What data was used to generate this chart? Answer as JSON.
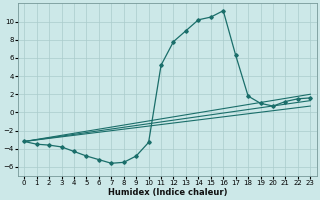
{
  "xlabel": "Humidex (Indice chaleur)",
  "ylabel": "",
  "xlim": [
    -0.5,
    23.5
  ],
  "ylim": [
    -7,
    12
  ],
  "yticks": [
    -6,
    -4,
    -2,
    0,
    2,
    4,
    6,
    8,
    10
  ],
  "xticks": [
    0,
    1,
    2,
    3,
    4,
    5,
    6,
    7,
    8,
    9,
    10,
    11,
    12,
    13,
    14,
    15,
    16,
    17,
    18,
    19,
    20,
    21,
    22,
    23
  ],
  "background_color": "#cce8e8",
  "grid_color": "#aacccc",
  "line_color": "#1a6e6a",
  "curve1_x": [
    0,
    1,
    2,
    3,
    4,
    5,
    6,
    7,
    8,
    9,
    10,
    11,
    12,
    13,
    14,
    15,
    16,
    17,
    18,
    19,
    20,
    21,
    22,
    23
  ],
  "curve1_y": [
    -3.2,
    -3.5,
    -3.6,
    -3.8,
    -4.3,
    -4.8,
    -5.2,
    -5.6,
    -5.5,
    -4.8,
    -3.3,
    5.2,
    7.8,
    9.0,
    10.2,
    10.5,
    11.2,
    6.3,
    1.8,
    1.0,
    0.7,
    1.2,
    1.5,
    1.6
  ],
  "line1_x": [
    0,
    23
  ],
  "line1_y": [
    -3.2,
    2.0
  ],
  "line2_x": [
    0,
    23
  ],
  "line2_y": [
    -3.2,
    1.3
  ],
  "line3_x": [
    0,
    23
  ],
  "line3_y": [
    -3.2,
    0.7
  ]
}
